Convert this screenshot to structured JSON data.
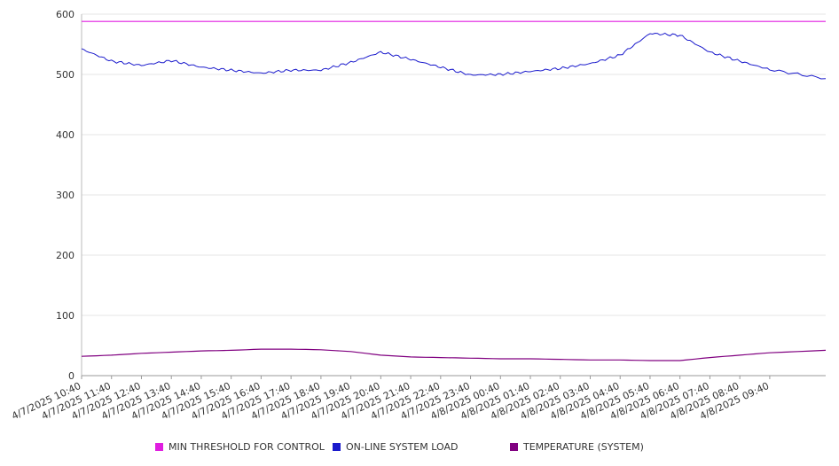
{
  "chart_data": {
    "type": "line",
    "title": "",
    "xlabel": "",
    "ylabel": "",
    "ylim": [
      0,
      600
    ],
    "y_ticks": [
      "0",
      "100",
      "200",
      "300",
      "400",
      "500",
      "600"
    ],
    "x_ticks": [
      "4/7/2025 10:40",
      "4/7/2025 11:40",
      "4/7/2025 12:40",
      "4/7/2025 13:40",
      "4/7/2025 14:40",
      "4/7/2025 15:40",
      "4/7/2025 16:40",
      "4/7/2025 17:40",
      "4/7/2025 18:40",
      "4/7/2025 19:40",
      "4/7/2025 20:40",
      "4/7/2025 21:40",
      "4/7/2025 22:40",
      "4/7/2025 23:40",
      "4/8/2025 00:40",
      "4/8/2025 01:40",
      "4/8/2025 02:40",
      "4/8/2025 03:40",
      "4/8/2025 04:40",
      "4/8/2025 05:40",
      "4/8/2025 06:40",
      "4/8/2025 07:40",
      "4/8/2025 08:40",
      "4/8/2025 09:40"
    ],
    "x": [
      "4/7/2025 10:40",
      "4/7/2025 11:40",
      "4/7/2025 12:40",
      "4/7/2025 13:40",
      "4/7/2025 14:40",
      "4/7/2025 15:40",
      "4/7/2025 16:40",
      "4/7/2025 17:40",
      "4/7/2025 18:40",
      "4/7/2025 19:40",
      "4/7/2025 20:40",
      "4/7/2025 21:40",
      "4/7/2025 22:40",
      "4/7/2025 23:40",
      "4/8/2025 00:40",
      "4/8/2025 01:40",
      "4/8/2025 02:40",
      "4/8/2025 03:40",
      "4/8/2025 04:40",
      "4/8/2025 05:40",
      "4/8/2025 06:40",
      "4/8/2025 07:40",
      "4/8/2025 08:40",
      "4/8/2025 09:40",
      "4/8/2025 10:20"
    ],
    "series": [
      {
        "name": "MIN THRESHOLD FOR CONTROL",
        "color": "#e01ee0",
        "values": [
          588,
          588,
          588,
          588,
          588,
          588,
          588,
          588,
          588,
          588,
          588,
          588,
          588,
          588,
          588,
          588,
          588,
          588,
          588,
          588,
          588,
          588,
          588,
          588,
          588
        ]
      },
      {
        "name": "ON-LINE SYSTEM LOAD",
        "color": "#1a1acc",
        "values": [
          542,
          522,
          515,
          523,
          512,
          507,
          502,
          507,
          507,
          520,
          537,
          525,
          512,
          499,
          500,
          505,
          510,
          518,
          532,
          568,
          565,
          537,
          522,
          508,
          493
        ]
      },
      {
        "name": "TEMPERATURE (SYSTEM)",
        "color": "#800080",
        "values": [
          32,
          34,
          37,
          39,
          41,
          42,
          44,
          44,
          43,
          40,
          34,
          31,
          30,
          29,
          28,
          28,
          27,
          26,
          26,
          25,
          25,
          30,
          34,
          38,
          42
        ]
      }
    ],
    "legend_position": "bottom",
    "grid": true
  }
}
